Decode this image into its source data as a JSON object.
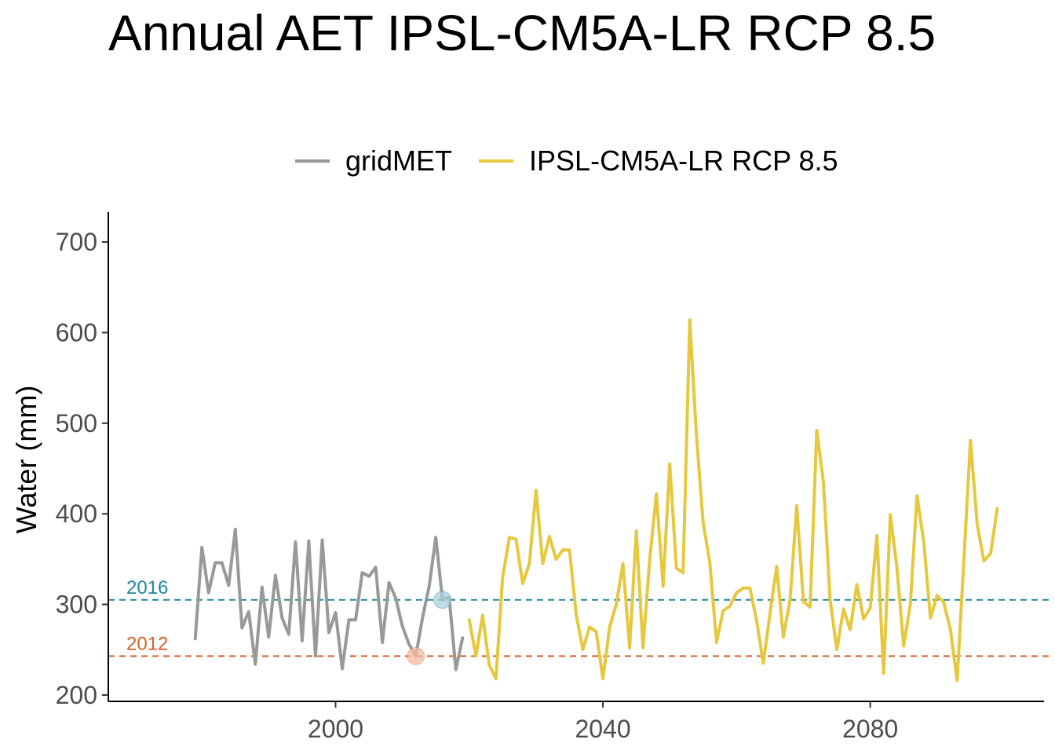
{
  "chart_data": {
    "type": "line",
    "title": "Annual AET IPSL-CM5A-LR RCP 8.5",
    "xlabel": "",
    "ylabel": "Water (mm)",
    "xlim": [
      1966,
      2106
    ],
    "ylim": [
      193,
      733
    ],
    "x_ticks": [
      2000,
      2040,
      2080
    ],
    "y_ticks": [
      200,
      300,
      400,
      500,
      600,
      700
    ],
    "grid": false,
    "legend_position": "top",
    "series": [
      {
        "name": "gridMET",
        "color": "#999999",
        "x": [
          1979,
          1980,
          1981,
          1982,
          1983,
          1984,
          1985,
          1986,
          1987,
          1988,
          1989,
          1990,
          1991,
          1992,
          1993,
          1994,
          1995,
          1996,
          1997,
          1998,
          1999,
          2000,
          2001,
          2002,
          2003,
          2004,
          2005,
          2006,
          2007,
          2008,
          2009,
          2010,
          2011,
          2012,
          2013,
          2014,
          2015,
          2016,
          2017,
          2018,
          2019
        ],
        "y": [
          262,
          363,
          313,
          346,
          346,
          321,
          383,
          274,
          292,
          234,
          319,
          264,
          332,
          285,
          267,
          369,
          260,
          370,
          243,
          371,
          269,
          291,
          229,
          283,
          283,
          335,
          331,
          341,
          258,
          324,
          307,
          276,
          256,
          243,
          285,
          320,
          374,
          305,
          308,
          228,
          263
        ]
      },
      {
        "name": "IPSL-CM5A-LR RCP 8.5",
        "color": "#e6c83f",
        "x": [
          2020,
          2021,
          2022,
          2023,
          2024,
          2025,
          2026,
          2027,
          2028,
          2029,
          2030,
          2031,
          2032,
          2033,
          2034,
          2035,
          2036,
          2037,
          2038,
          2039,
          2040,
          2041,
          2042,
          2043,
          2044,
          2045,
          2046,
          2047,
          2048,
          2049,
          2050,
          2051,
          2052,
          2053,
          2054,
          2055,
          2056,
          2057,
          2058,
          2059,
          2060,
          2061,
          2062,
          2063,
          2064,
          2065,
          2066,
          2067,
          2068,
          2069,
          2070,
          2071,
          2072,
          2073,
          2074,
          2075,
          2076,
          2077,
          2078,
          2079,
          2080,
          2081,
          2082,
          2083,
          2084,
          2085,
          2086,
          2087,
          2088,
          2089,
          2090,
          2091,
          2092,
          2093,
          2094,
          2095,
          2096,
          2097,
          2098,
          2099
        ],
        "y": [
          283,
          243,
          288,
          233,
          218,
          330,
          374,
          372,
          323,
          345,
          426,
          345,
          375,
          350,
          360,
          360,
          289,
          250,
          275,
          270,
          218,
          275,
          300,
          345,
          252,
          381,
          252,
          350,
          422,
          320,
          455,
          340,
          335,
          614,
          485,
          390,
          346,
          258,
          293,
          298,
          313,
          318,
          318,
          282,
          235,
          290,
          342,
          264,
          305,
          409,
          303,
          297,
          492,
          435,
          305,
          250,
          295,
          272,
          322,
          284,
          296,
          376,
          224,
          399,
          340,
          254,
          300,
          420,
          370,
          285,
          310,
          302,
          272,
          216,
          347,
          481,
          388,
          348,
          356,
          406
        ]
      }
    ],
    "reference_lines": [
      {
        "label": "2016",
        "y": 305,
        "color": "#21879b",
        "marker_x": 2016,
        "marker_fill": "#a9cfdb"
      },
      {
        "label": "2012",
        "y": 243,
        "color": "#d3632b",
        "marker_x": 2012,
        "marker_fill": "#f3b9a0"
      }
    ]
  }
}
